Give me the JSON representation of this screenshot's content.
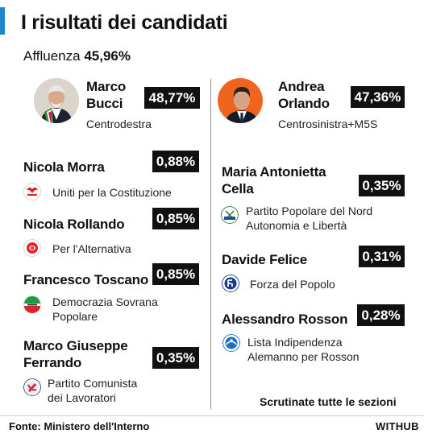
{
  "title": "I risultati dei candidati",
  "turnout": {
    "label": "Affluenza",
    "value": "45,96%"
  },
  "main_candidates": [
    {
      "name_line1": "Marco",
      "name_line2": "Bucci",
      "percent": "48,77%",
      "coalition": "Centrodestra"
    },
    {
      "name_line1": "Andrea",
      "name_line2": "Orlando",
      "percent": "47,36%",
      "coalition": "Centrosinistra+M5S"
    }
  ],
  "left_candidates": [
    {
      "name_lines": [
        "Nicola Morra"
      ],
      "percent": "0,88%",
      "party_lines": [
        "Uniti per la Costituzione"
      ]
    },
    {
      "name_lines": [
        "Nicola Rollando"
      ],
      "percent": "0,85%",
      "party_lines": [
        "Per l'Alternativa"
      ]
    },
    {
      "name_lines": [
        "Francesco Toscano"
      ],
      "percent": "0,85%",
      "party_lines": [
        "Democrazia Sovrana",
        "Popolare"
      ]
    },
    {
      "name_lines": [
        "Marco Giuseppe",
        "Ferrando"
      ],
      "percent": "0,35%",
      "party_lines": [
        "Partito Comunista",
        "dei Lavoratori"
      ]
    }
  ],
  "right_candidates": [
    {
      "name_lines": [
        "Maria Antonietta",
        "Cella"
      ],
      "percent": "0,35%",
      "party_lines": [
        "Partito Popolare del Nord",
        "Autonomia e Libertà"
      ]
    },
    {
      "name_lines": [
        "Davide Felice"
      ],
      "percent": "0,31%",
      "party_lines": [
        "Forza del Popolo"
      ]
    },
    {
      "name_lines": [
        "Alessandro Rosson"
      ],
      "percent": "0,28%",
      "party_lines": [
        "Lista Indipendenza",
        "Alemanno per Rosson"
      ]
    }
  ],
  "counted_note": "Scrutinate tutte le sezioni",
  "source": "Fonte: Ministero dell'Interno",
  "brand": "WITHUB",
  "colors": {
    "accent": "#1f86c9",
    "orlando_photo_bg": "#f0641e",
    "bucci_photo_bg": "#d9d4cc",
    "percent_box": "#111111"
  },
  "icons": [
    "bucci-photo",
    "orlando-photo",
    "uniti-costituzione-logo",
    "per-alternativa-logo",
    "democrazia-sovrana-logo",
    "partito-comunista-lavoratori-logo",
    "partito-popolare-nord-logo",
    "forza-del-popolo-logo",
    "lista-indipendenza-logo"
  ]
}
